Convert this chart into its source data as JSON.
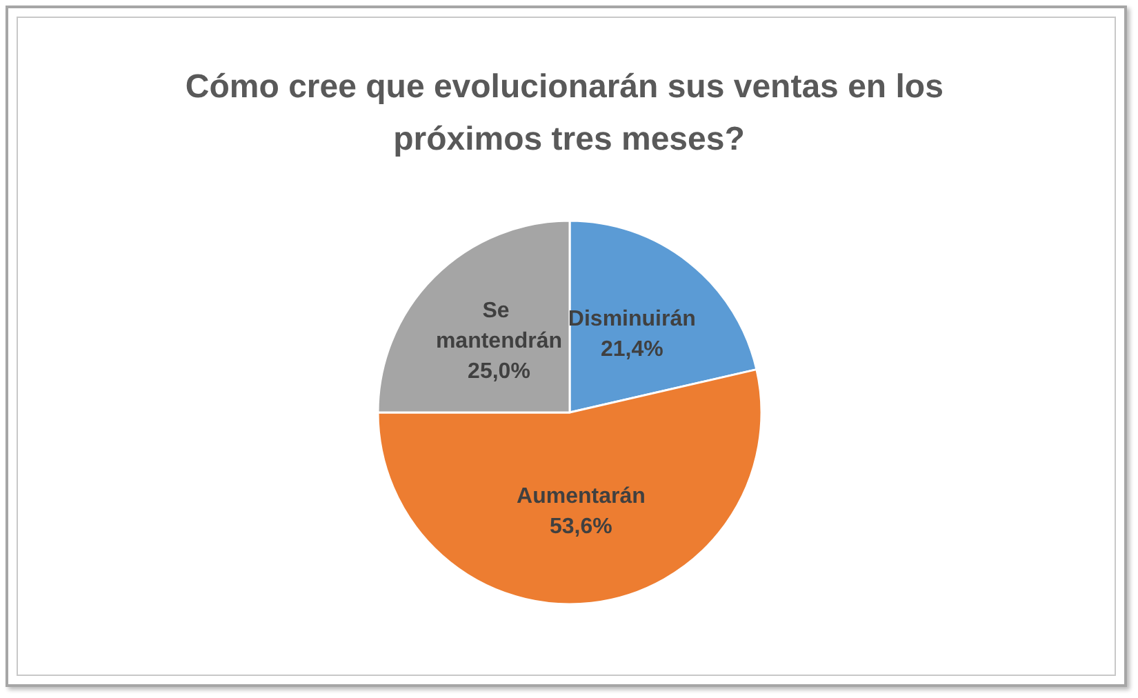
{
  "chart_data": {
    "type": "pie",
    "title": "Cómo cree que evolucionarán sus ventas en los próximos tres meses?",
    "categories": [
      "Disminuirán",
      "Aumentarán",
      "Se mantendrán"
    ],
    "values": [
      21.4,
      53.6,
      25.0
    ],
    "colors": [
      "#5b9bd5",
      "#ed7d31",
      "#a5a5a5"
    ],
    "value_labels": [
      "21,4%",
      "53,6%",
      "25,0%"
    ],
    "legend": false
  }
}
